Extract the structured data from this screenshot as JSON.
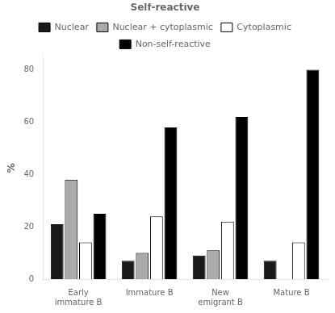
{
  "chart_data": {
    "type": "bar",
    "categories": [
      "Early\nimmature B",
      "Immature B",
      "New\nemigrant B",
      "Mature B"
    ],
    "series": [
      {
        "name": "Nuclear",
        "color": "#1a1a1a",
        "values": [
          21,
          7,
          9,
          7
        ]
      },
      {
        "name": "Nuclear + cytoplasmic",
        "color": "#aaaaaa",
        "values": [
          38,
          10,
          11,
          0
        ]
      },
      {
        "name": "Cytoplasmic",
        "color": "#ffffff",
        "values": [
          14,
          24,
          22,
          14
        ]
      },
      {
        "name": "Non-self-reactive",
        "color": "#000000",
        "values": [
          25,
          58,
          62,
          80
        ]
      }
    ],
    "ylabel": "%",
    "ylim": [
      0,
      85
    ],
    "yticks": [
      0,
      20,
      40,
      60,
      80
    ],
    "grid": false,
    "legend": "top",
    "annotations": [
      "Self-reactive"
    ]
  }
}
